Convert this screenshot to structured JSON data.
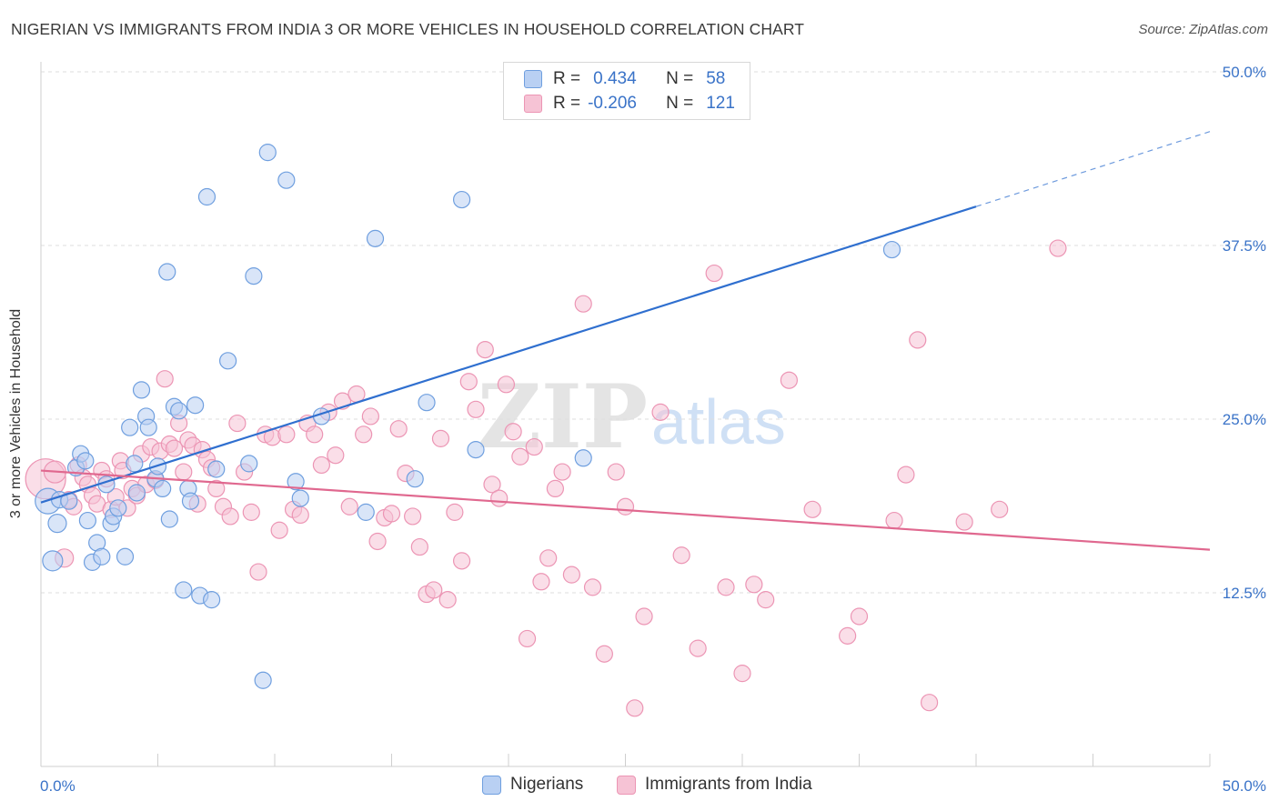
{
  "chart_data": {
    "type": "scatter",
    "title": "NIGERIAN VS IMMIGRANTS FROM INDIA 3 OR MORE VEHICLES IN HOUSEHOLD CORRELATION CHART",
    "source": "Source: ZipAtlas.com",
    "xlabel": "",
    "ylabel": "3 or more Vehicles in Household",
    "xlim": [
      0,
      50
    ],
    "ylim": [
      0,
      50
    ],
    "x_tick_labels": [
      "0.0%",
      "50.0%"
    ],
    "y_ticks": [
      12.5,
      25.0,
      37.5,
      50.0
    ],
    "y_tick_labels": [
      "12.5%",
      "25.0%",
      "37.5%",
      "50.0%"
    ],
    "grid": true,
    "watermark": {
      "zip": "ZIP",
      "atlas": "atlas"
    },
    "legend_stats": [
      {
        "r_label": "R =",
        "r_value": "0.434",
        "n_label": "N =",
        "n_value": "58"
      },
      {
        "r_label": "R =",
        "r_value": "-0.206",
        "n_label": "N =",
        "n_value": "121"
      }
    ],
    "series": [
      {
        "name": "Nigerians",
        "color": "#6f9fdf",
        "fill": "#b9d0f3",
        "trend": {
          "x0": 0,
          "y0": 19.0,
          "x1": 40,
          "y1": 40.3,
          "dash_to_x": 50,
          "dash_to_y": 45.7,
          "color": "#2f6fcf"
        },
        "points": [
          [
            0.3,
            19.1,
            14
          ],
          [
            0.5,
            14.8,
            11
          ],
          [
            0.7,
            17.5,
            10
          ],
          [
            0.8,
            19.2,
            9
          ],
          [
            1.2,
            19.1,
            9
          ],
          [
            1.5,
            21.5,
            9
          ],
          [
            1.7,
            22.5,
            9
          ],
          [
            1.9,
            22.0,
            9
          ],
          [
            2.0,
            17.7,
            9
          ],
          [
            2.2,
            14.7,
            9
          ],
          [
            2.4,
            16.1,
            9
          ],
          [
            2.6,
            15.1,
            9
          ],
          [
            2.8,
            20.3,
            9
          ],
          [
            3.0,
            17.5,
            9
          ],
          [
            3.1,
            18.0,
            9
          ],
          [
            3.3,
            18.6,
            9
          ],
          [
            3.6,
            15.1,
            9
          ],
          [
            3.8,
            24.4,
            9
          ],
          [
            4.0,
            21.8,
            9
          ],
          [
            4.1,
            19.7,
            9
          ],
          [
            4.3,
            27.1,
            9
          ],
          [
            4.5,
            25.2,
            9
          ],
          [
            4.6,
            24.4,
            9
          ],
          [
            4.9,
            20.7,
            9
          ],
          [
            5.0,
            21.6,
            9
          ],
          [
            5.2,
            20.0,
            9
          ],
          [
            5.4,
            35.6,
            9
          ],
          [
            5.5,
            17.8,
            9
          ],
          [
            5.7,
            25.9,
            9
          ],
          [
            5.9,
            25.6,
            9
          ],
          [
            6.1,
            12.7,
            9
          ],
          [
            6.3,
            20.0,
            9
          ],
          [
            6.4,
            19.1,
            9
          ],
          [
            6.6,
            26.0,
            9
          ],
          [
            6.8,
            12.3,
            9
          ],
          [
            7.1,
            41.0,
            9
          ],
          [
            7.3,
            12.0,
            9
          ],
          [
            7.5,
            21.4,
            9
          ],
          [
            8.0,
            29.2,
            9
          ],
          [
            8.9,
            21.8,
            9
          ],
          [
            9.1,
            35.3,
            9
          ],
          [
            9.5,
            6.2,
            9
          ],
          [
            9.7,
            44.2,
            9
          ],
          [
            10.5,
            42.2,
            9
          ],
          [
            10.9,
            20.5,
            9
          ],
          [
            11.1,
            19.3,
            9
          ],
          [
            12.0,
            25.2,
            9
          ],
          [
            13.9,
            18.3,
            9
          ],
          [
            14.3,
            38.0,
            9
          ],
          [
            16.0,
            20.7,
            9
          ],
          [
            16.5,
            26.2,
            9
          ],
          [
            18.0,
            40.8,
            9
          ],
          [
            18.6,
            22.8,
            9
          ],
          [
            23.2,
            22.2,
            9
          ],
          [
            36.4,
            37.2,
            9
          ]
        ]
      },
      {
        "name": "Immigrants from India",
        "color": "#ec95b4",
        "fill": "#f6c3d5",
        "trend": {
          "x0": 0,
          "y0": 21.3,
          "x1": 50,
          "y1": 15.6,
          "color": "#e0688f"
        },
        "points": [
          [
            0.2,
            20.7,
            22
          ],
          [
            0.6,
            21.2,
            12
          ],
          [
            1.0,
            15.0,
            10
          ],
          [
            1.2,
            19.2,
            9
          ],
          [
            1.4,
            18.7,
            9
          ],
          [
            1.6,
            21.7,
            9
          ],
          [
            1.8,
            20.8,
            9
          ],
          [
            2.0,
            20.3,
            9
          ],
          [
            2.2,
            19.5,
            9
          ],
          [
            2.4,
            18.9,
            9
          ],
          [
            2.6,
            21.3,
            9
          ],
          [
            2.8,
            20.7,
            9
          ],
          [
            3.0,
            18.5,
            9
          ],
          [
            3.2,
            19.4,
            9
          ],
          [
            3.4,
            22.0,
            9
          ],
          [
            3.5,
            21.3,
            9
          ],
          [
            3.7,
            18.6,
            9
          ],
          [
            3.9,
            20.0,
            9
          ],
          [
            4.1,
            19.5,
            9
          ],
          [
            4.3,
            22.5,
            9
          ],
          [
            4.5,
            20.3,
            9
          ],
          [
            4.7,
            23.0,
            9
          ],
          [
            4.9,
            20.6,
            9
          ],
          [
            5.1,
            22.7,
            9
          ],
          [
            5.3,
            27.9,
            9
          ],
          [
            5.5,
            23.2,
            9
          ],
          [
            5.7,
            22.9,
            9
          ],
          [
            5.9,
            24.7,
            9
          ],
          [
            6.1,
            21.2,
            9
          ],
          [
            6.3,
            23.5,
            9
          ],
          [
            6.5,
            23.1,
            9
          ],
          [
            6.7,
            18.9,
            9
          ],
          [
            6.9,
            22.8,
            9
          ],
          [
            7.1,
            22.1,
            9
          ],
          [
            7.3,
            21.5,
            9
          ],
          [
            7.5,
            20.0,
            9
          ],
          [
            7.8,
            18.7,
            9
          ],
          [
            8.1,
            18.0,
            9
          ],
          [
            8.4,
            24.7,
            9
          ],
          [
            8.7,
            21.2,
            9
          ],
          [
            9.0,
            18.3,
            9
          ],
          [
            9.3,
            14.0,
            9
          ],
          [
            9.6,
            23.9,
            9
          ],
          [
            9.9,
            23.7,
            9
          ],
          [
            10.2,
            17.0,
            9
          ],
          [
            10.5,
            23.9,
            9
          ],
          [
            10.8,
            18.5,
            9
          ],
          [
            11.1,
            18.1,
            9
          ],
          [
            11.4,
            24.7,
            9
          ],
          [
            11.7,
            23.9,
            9
          ],
          [
            12.0,
            21.7,
            9
          ],
          [
            12.3,
            25.5,
            9
          ],
          [
            12.6,
            22.4,
            9
          ],
          [
            12.9,
            26.3,
            9
          ],
          [
            13.2,
            18.7,
            9
          ],
          [
            13.5,
            26.8,
            9
          ],
          [
            13.8,
            23.9,
            9
          ],
          [
            14.1,
            25.2,
            9
          ],
          [
            14.4,
            16.2,
            9
          ],
          [
            14.7,
            17.9,
            9
          ],
          [
            15.0,
            18.2,
            9
          ],
          [
            15.3,
            24.3,
            9
          ],
          [
            15.6,
            21.1,
            9
          ],
          [
            15.9,
            18.0,
            9
          ],
          [
            16.2,
            15.8,
            9
          ],
          [
            16.5,
            12.4,
            9
          ],
          [
            16.8,
            12.7,
            9
          ],
          [
            17.1,
            23.6,
            9
          ],
          [
            17.4,
            12.0,
            9
          ],
          [
            17.7,
            18.3,
            9
          ],
          [
            18.0,
            14.8,
            9
          ],
          [
            18.3,
            27.7,
            9
          ],
          [
            18.6,
            25.7,
            9
          ],
          [
            19.0,
            30.0,
            9
          ],
          [
            19.3,
            20.3,
            9
          ],
          [
            19.6,
            19.3,
            9
          ],
          [
            19.9,
            27.5,
            9
          ],
          [
            20.2,
            24.1,
            9
          ],
          [
            20.5,
            22.3,
            9
          ],
          [
            20.8,
            9.2,
            9
          ],
          [
            21.1,
            23.0,
            9
          ],
          [
            21.4,
            13.3,
            9
          ],
          [
            21.7,
            15.0,
            9
          ],
          [
            22.0,
            20.0,
            9
          ],
          [
            22.3,
            21.2,
            9
          ],
          [
            22.7,
            13.8,
            9
          ],
          [
            23.2,
            33.3,
            9
          ],
          [
            23.6,
            12.9,
            9
          ],
          [
            24.1,
            8.1,
            9
          ],
          [
            24.6,
            21.2,
            9
          ],
          [
            25.0,
            18.7,
            9
          ],
          [
            25.4,
            4.2,
            9
          ],
          [
            25.8,
            10.8,
            9
          ],
          [
            26.5,
            25.5,
            9
          ],
          [
            27.4,
            15.2,
            9
          ],
          [
            28.1,
            8.5,
            9
          ],
          [
            28.8,
            35.5,
            9
          ],
          [
            29.3,
            12.9,
            9
          ],
          [
            30.0,
            6.7,
            9
          ],
          [
            30.5,
            13.1,
            9
          ],
          [
            31.0,
            12.0,
            9
          ],
          [
            32.0,
            27.8,
            9
          ],
          [
            33.0,
            18.5,
            9
          ],
          [
            34.5,
            9.4,
            9
          ],
          [
            35.0,
            10.8,
            9
          ],
          [
            36.5,
            17.7,
            9
          ],
          [
            37.0,
            21.0,
            9
          ],
          [
            37.5,
            30.7,
            9
          ],
          [
            38.0,
            4.6,
            9
          ],
          [
            39.5,
            17.6,
            9
          ],
          [
            41.0,
            18.5,
            9
          ],
          [
            43.5,
            37.3,
            9
          ]
        ]
      }
    ]
  }
}
